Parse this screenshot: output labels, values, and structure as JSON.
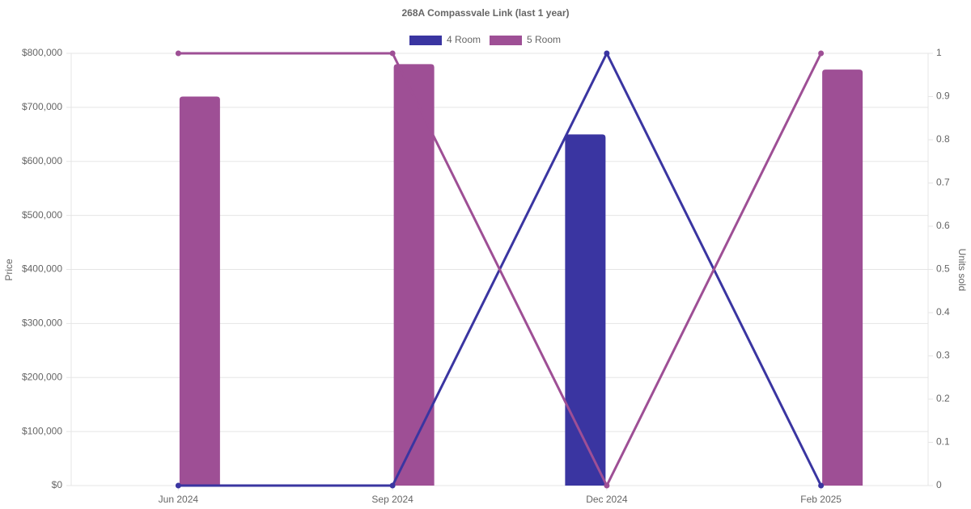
{
  "chart_data": {
    "type": "bar-line",
    "title": "268A Compassvale Link (last 1 year)",
    "y_label": "Price",
    "y2_label": "Units sold",
    "categories": [
      "Jun 2024",
      "Sep 2024",
      "Dec 2024",
      "Feb 2025"
    ],
    "series": [
      {
        "name": "4 Room",
        "color": "#3a35a1",
        "values": [
          null,
          null,
          650000,
          null
        ],
        "units": [
          0,
          0,
          1,
          0
        ]
      },
      {
        "name": "5 Room",
        "color": "#9e4f95",
        "values": [
          720000,
          780000,
          null,
          770000
        ],
        "units": [
          1,
          1,
          0,
          1
        ]
      }
    ],
    "ylim": [
      0,
      800000
    ],
    "yticks": [
      {
        "value": 0,
        "label": "$0"
      },
      {
        "value": 100000,
        "label": "$100,000"
      },
      {
        "value": 200000,
        "label": "$200,000"
      },
      {
        "value": 300000,
        "label": "$300,000"
      },
      {
        "value": 400000,
        "label": "$400,000"
      },
      {
        "value": 500000,
        "label": "$500,000"
      },
      {
        "value": 600000,
        "label": "$600,000"
      },
      {
        "value": 700000,
        "label": "$700,000"
      },
      {
        "value": 800000,
        "label": "$800,000"
      }
    ],
    "y2lim": [
      0,
      1
    ],
    "y2ticks": [
      0,
      0.1,
      0.2,
      0.3,
      0.4,
      0.5,
      0.6,
      0.7,
      0.8,
      0.9,
      1
    ],
    "grid": true,
    "legend": "top"
  }
}
